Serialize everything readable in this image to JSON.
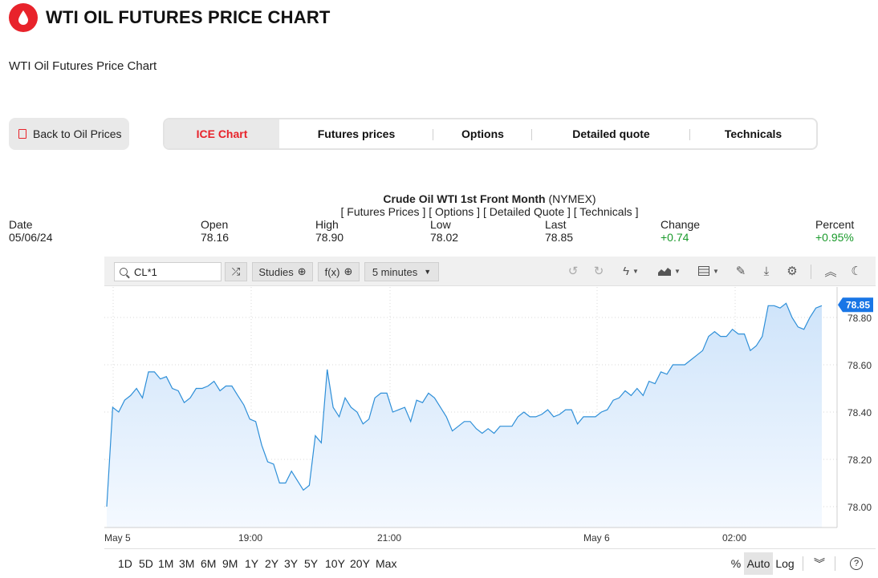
{
  "header": {
    "title": "WTI OIL FUTURES PRICE CHART",
    "subtitle": "WTI Oil Futures Price Chart"
  },
  "back_button": {
    "label": "Back to Oil Prices"
  },
  "tabs": [
    {
      "label": "ICE Chart",
      "active": true
    },
    {
      "label": "Futures prices",
      "active": false
    },
    {
      "label": "Options",
      "active": false
    },
    {
      "label": "Detailed quote",
      "active": false
    },
    {
      "label": "Technicals",
      "active": false
    }
  ],
  "quote": {
    "name": "Crude Oil WTI 1st Front Month",
    "exchange": "(NYMEX)",
    "links": [
      "[ Futures Prices ]",
      "[ Options ]",
      "[ Detailed Quote ]",
      "[ Technicals ]"
    ],
    "stats": {
      "date": {
        "label": "Date",
        "value": "05/06/24"
      },
      "open": {
        "label": "Open",
        "value": "78.16"
      },
      "high": {
        "label": "High",
        "value": "78.90"
      },
      "low": {
        "label": "Low",
        "value": "78.02"
      },
      "last": {
        "label": "Last",
        "value": "78.85"
      },
      "change": {
        "label": "Change",
        "value": "+0.74"
      },
      "percent": {
        "label": "Percent",
        "value": "+0.95%"
      }
    }
  },
  "toolbar": {
    "symbol": "CL*1",
    "studies_label": "Studies",
    "fx_label": "f(x)",
    "interval_label": "5 minutes"
  },
  "chart_data": {
    "type": "area",
    "title": "",
    "xlabel": "",
    "ylabel": "",
    "x_tick_labels": [
      "May 5",
      "19:00",
      "21:00",
      "May 6",
      "02:00"
    ],
    "y_tick_labels": [
      "78.00",
      "78.20",
      "78.40",
      "78.60",
      "78.80"
    ],
    "ylim": [
      77.95,
      78.93
    ],
    "last_price_label": "78.85",
    "series": [
      {
        "values": [
          78.0,
          78.42,
          78.4,
          78.45,
          78.47,
          78.5,
          78.46,
          78.57,
          78.57,
          78.54,
          78.55,
          78.5,
          78.49,
          78.44,
          78.46,
          78.5,
          78.5,
          78.51,
          78.53,
          78.49,
          78.51,
          78.51,
          78.47,
          78.43,
          78.37,
          78.36,
          78.26,
          78.19,
          78.18,
          78.1,
          78.1,
          78.15,
          78.11,
          78.07,
          78.09,
          78.3,
          78.27,
          78.58,
          78.42,
          78.38,
          78.46,
          78.42,
          78.4,
          78.35,
          78.37,
          78.46,
          78.48,
          78.48,
          78.4,
          78.41,
          78.42,
          78.36,
          78.45,
          78.44,
          78.48,
          78.46,
          78.42,
          78.38,
          78.32,
          78.34,
          78.36,
          78.36,
          78.33,
          78.31,
          78.33,
          78.31,
          78.34,
          78.34,
          78.34,
          78.38,
          78.4,
          78.38,
          78.38,
          78.39,
          78.41,
          78.38,
          78.39,
          78.41,
          78.41,
          78.35,
          78.38,
          78.38,
          78.38,
          78.4,
          78.41,
          78.45,
          78.46,
          78.49,
          78.47,
          78.5,
          78.47,
          78.53,
          78.52,
          78.57,
          78.56,
          78.6,
          78.6,
          78.6,
          78.62,
          78.64,
          78.66,
          78.72,
          78.74,
          78.72,
          78.72,
          78.75,
          78.73,
          78.73,
          78.66,
          78.68,
          78.72,
          78.85,
          78.85,
          78.84,
          78.86,
          78.8,
          78.76,
          78.75,
          78.8,
          78.84,
          78.85
        ]
      }
    ],
    "grid": true,
    "colors": {
      "line": "#2e8fd8",
      "fill_top": "#cfe4fa",
      "fill_bottom": "#f4f9ff",
      "badge": "#1976e6"
    }
  },
  "ranges": [
    "1D",
    "5D",
    "1M",
    "3M",
    "6M",
    "9M",
    "1Y",
    "2Y",
    "3Y",
    "5Y",
    "10Y",
    "20Y",
    "Max"
  ],
  "scale": {
    "percent": "%",
    "auto": "Auto",
    "log": "Log"
  }
}
